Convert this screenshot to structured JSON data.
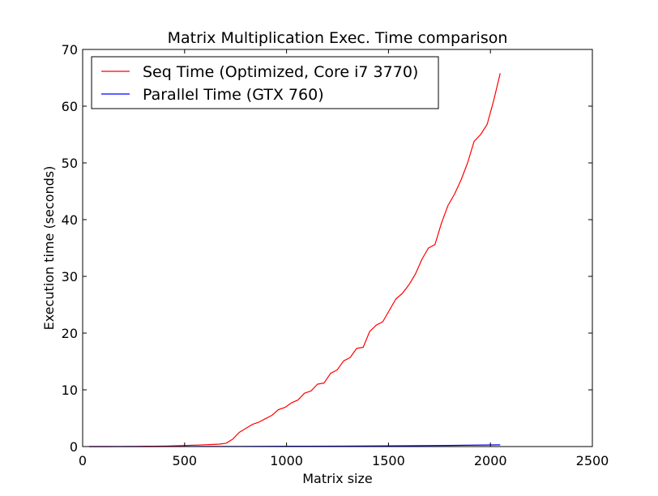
{
  "chart_data": {
    "type": "line",
    "title": "Matrix Multiplication Exec. Time comparison",
    "xlabel": "Matrix size",
    "ylabel": "Execution time (seconds)",
    "xlim": [
      0,
      2500
    ],
    "ylim": [
      0,
      70
    ],
    "xticks": [
      0,
      500,
      1000,
      1500,
      2000,
      2500
    ],
    "yticks": [
      0,
      10,
      20,
      30,
      40,
      50,
      60,
      70
    ],
    "grid": false,
    "legend_position": "top-left",
    "series": [
      {
        "name": "Seq Time (Optimized, Core i7 3770)",
        "color": "#ff0000",
        "x": [
          32,
          64,
          96,
          128,
          160,
          192,
          224,
          256,
          288,
          320,
          352,
          384,
          416,
          448,
          480,
          512,
          544,
          576,
          608,
          640,
          672,
          704,
          736,
          768,
          800,
          832,
          864,
          896,
          928,
          960,
          992,
          1024,
          1056,
          1088,
          1120,
          1152,
          1184,
          1216,
          1248,
          1280,
          1312,
          1344,
          1376,
          1408,
          1440,
          1472,
          1504,
          1536,
          1568,
          1600,
          1632,
          1664,
          1696,
          1728,
          1760,
          1792,
          1824,
          1856,
          1888,
          1920,
          1952,
          1984,
          2016,
          2048
        ],
        "y": [
          0.0,
          0.0,
          0.0,
          0.0,
          0.01,
          0.01,
          0.02,
          0.03,
          0.04,
          0.05,
          0.06,
          0.08,
          0.1,
          0.13,
          0.16,
          0.2,
          0.24,
          0.28,
          0.33,
          0.38,
          0.43,
          0.6,
          1.3,
          2.5,
          3.2,
          3.9,
          4.3,
          4.9,
          5.5,
          6.5,
          6.9,
          7.7,
          8.2,
          9.4,
          9.8,
          11.0,
          11.2,
          12.9,
          13.5,
          15.1,
          15.7,
          17.3,
          17.5,
          20.3,
          21.4,
          22.0,
          24.0,
          26.0,
          27.0,
          28.5,
          30.4,
          33.0,
          35.0,
          35.6,
          39.4,
          42.5,
          44.5,
          47.0,
          50.0,
          53.8,
          55.0,
          56.8,
          61.0,
          65.8
        ]
      },
      {
        "name": "Parallel Time (GTX 760)",
        "color": "#0000ff",
        "x": [
          32,
          256,
          512,
          768,
          1024,
          1280,
          1536,
          1792,
          2048
        ],
        "y": [
          0.0,
          0.0,
          0.01,
          0.02,
          0.05,
          0.08,
          0.13,
          0.2,
          0.3
        ]
      }
    ]
  }
}
